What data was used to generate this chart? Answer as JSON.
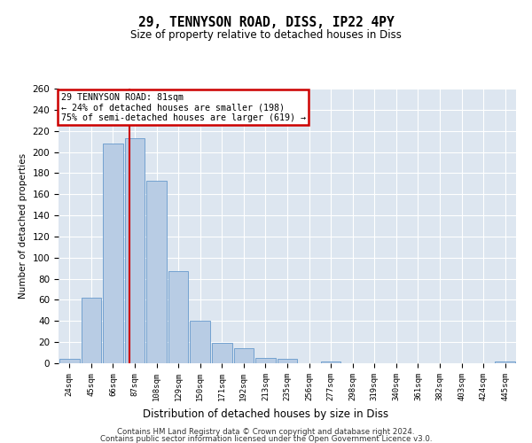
{
  "title1": "29, TENNYSON ROAD, DISS, IP22 4PY",
  "title2": "Size of property relative to detached houses in Diss",
  "xlabel": "Distribution of detached houses by size in Diss",
  "ylabel": "Number of detached properties",
  "footer1": "Contains HM Land Registry data © Crown copyright and database right 2024.",
  "footer2": "Contains public sector information licensed under the Open Government Licence v3.0.",
  "bins": [
    "24sqm",
    "45sqm",
    "66sqm",
    "87sqm",
    "108sqm",
    "129sqm",
    "150sqm",
    "171sqm",
    "192sqm",
    "213sqm",
    "235sqm",
    "256sqm",
    "277sqm",
    "298sqm",
    "319sqm",
    "340sqm",
    "361sqm",
    "382sqm",
    "403sqm",
    "424sqm",
    "445sqm"
  ],
  "values": [
    4,
    62,
    208,
    213,
    173,
    87,
    40,
    19,
    14,
    5,
    4,
    0,
    2,
    0,
    0,
    0,
    0,
    0,
    0,
    0,
    2
  ],
  "bar_color": "#b8cce4",
  "bar_edge_color": "#6699cc",
  "annotation_text": "29 TENNYSON ROAD: 81sqm\n← 24% of detached houses are smaller (198)\n75% of semi-detached houses are larger (619) →",
  "annotation_box_color": "#ffffff",
  "annotation_box_edge": "#cc0000",
  "red_line_color": "#cc0000",
  "background_color": "#dde6f0",
  "ylim": [
    0,
    260
  ],
  "yticks": [
    0,
    20,
    40,
    60,
    80,
    100,
    120,
    140,
    160,
    180,
    200,
    220,
    240,
    260
  ]
}
